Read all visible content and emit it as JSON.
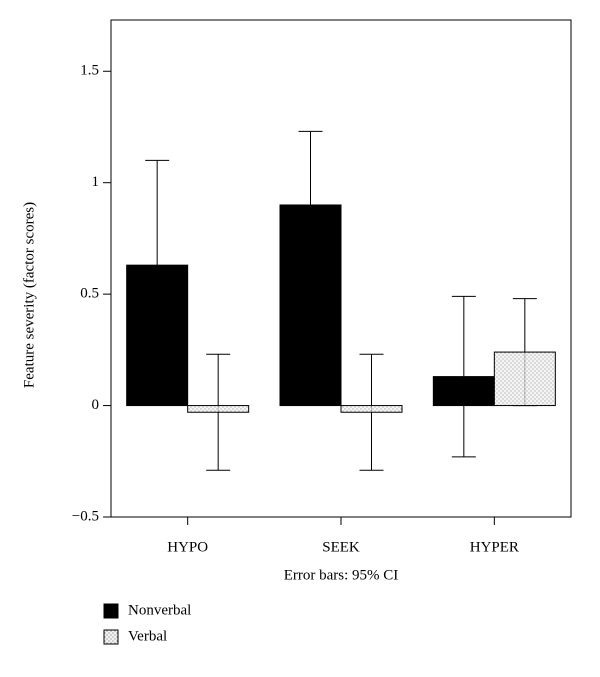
{
  "chart_data": {
    "type": "bar",
    "y_label": "Feature severity (factor scores)",
    "x_label": "Error bars: 95% CI",
    "categories": [
      "HYPO",
      "SEEK",
      "HYPER"
    ],
    "series": [
      {
        "name": "Nonverbal",
        "color": "#000000",
        "values": [
          0.63,
          0.9,
          0.13
        ],
        "errors": [
          0.47,
          0.33,
          0.36
        ]
      },
      {
        "name": "Verbal",
        "color": "#f2f2f2",
        "pattern": "dots",
        "values": [
          -0.03,
          -0.03,
          0.24
        ],
        "errors": [
          0.26,
          0.26,
          0.24
        ]
      }
    ],
    "ylim": [
      -0.5,
      1.73
    ],
    "yticks": [
      {
        "value": -0.5,
        "label": "−0.5"
      },
      0,
      0.5,
      1,
      1.5
    ],
    "legend": "bottom-left"
  }
}
